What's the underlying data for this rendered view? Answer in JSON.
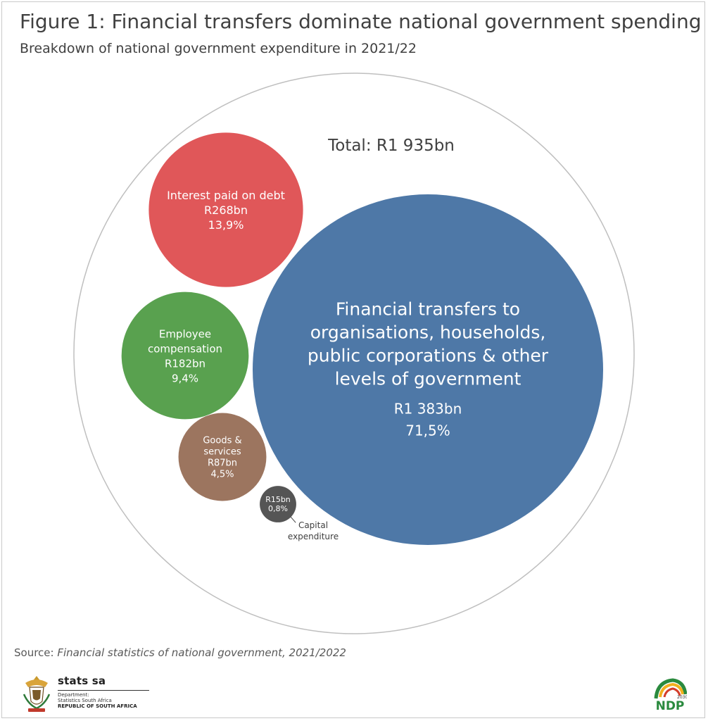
{
  "title": "Figure 1: Financial transfers dominate national government spending",
  "subtitle": "Breakdown of national government expenditure in 2021/22",
  "source_prefix": "Source: ",
  "source_italic": "Financial statistics of national government, 2021/2022",
  "footer": {
    "org_name": "stats sa",
    "dept_line1": "Department:",
    "dept_line2": "Statistics South Africa",
    "republic": "REPUBLIC OF SOUTH AFRICA",
    "ndp_logo_text": "NDP",
    "ndp_year": "2030"
  },
  "chart_data": {
    "type": "bubble",
    "total_label": "Total: R1 935bn",
    "total_value_bn": 1935,
    "items": [
      {
        "label_lines": [
          "Financial transfers to",
          "organisations, households,",
          "public corporations & other",
          "levels of government"
        ],
        "value_label": "R1 383bn",
        "pct_label": "71,5%",
        "value_bn": 1383,
        "pct": 71.5,
        "color": "#4e78a7"
      },
      {
        "label_lines": [
          "Interest paid on debt"
        ],
        "value_label": "R268bn",
        "pct_label": "13,9%",
        "value_bn": 268,
        "pct": 13.9,
        "color": "#e05759"
      },
      {
        "label_lines": [
          "Employee",
          "compensation"
        ],
        "value_label": "R182bn",
        "pct_label": "9,4%",
        "value_bn": 182,
        "pct": 9.4,
        "color": "#59a14f"
      },
      {
        "label_lines": [
          "Goods &",
          "services"
        ],
        "value_label": "R87bn",
        "pct_label": "4,5%",
        "value_bn": 87,
        "pct": 4.5,
        "color": "#9c755f"
      },
      {
        "label_lines": [],
        "value_label": "R15bn",
        "pct_label": "0,8%",
        "value_bn": 15,
        "pct": 0.8,
        "color": "#555555",
        "callout_lines": [
          "Capital",
          "expenditure"
        ]
      }
    ]
  }
}
